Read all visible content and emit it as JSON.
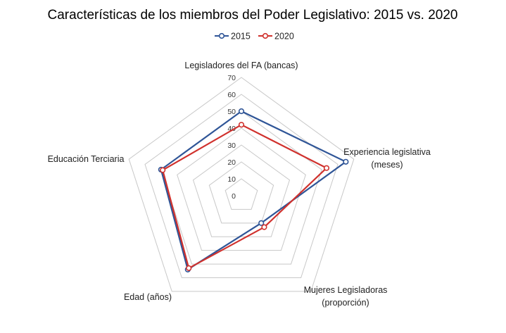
{
  "chart_data": {
    "type": "radar",
    "title": "Características de los miembros del Poder Legislativo: 2015 vs. 2020",
    "categories": [
      "Legisladores del FA (bancas)",
      "Experiencia legislativa (meses)",
      "Mujeres Legisladoras (proporción)",
      "Edad (años)",
      "Educación Terciaria"
    ],
    "category_lines": [
      [
        "Legisladores del FA (bancas)"
      ],
      [
        "Experiencia legislativa",
        "(meses)"
      ],
      [
        "Mujeres Legisladoras",
        "(proporción)"
      ],
      [
        "Edad (años)"
      ],
      [
        "Educación Terciaria"
      ]
    ],
    "rlim": [
      0,
      70
    ],
    "ticks": [
      "0",
      "10",
      "20",
      "30",
      "40",
      "50",
      "60",
      "70"
    ],
    "legend_position": "top",
    "series": [
      {
        "name": "2015",
        "color": "#2f5597",
        "values": [
          50,
          65,
          20,
          54,
          50
        ]
      },
      {
        "name": "2020",
        "color": "#d0312d",
        "values": [
          42,
          53,
          23,
          53,
          49
        ]
      }
    ]
  }
}
